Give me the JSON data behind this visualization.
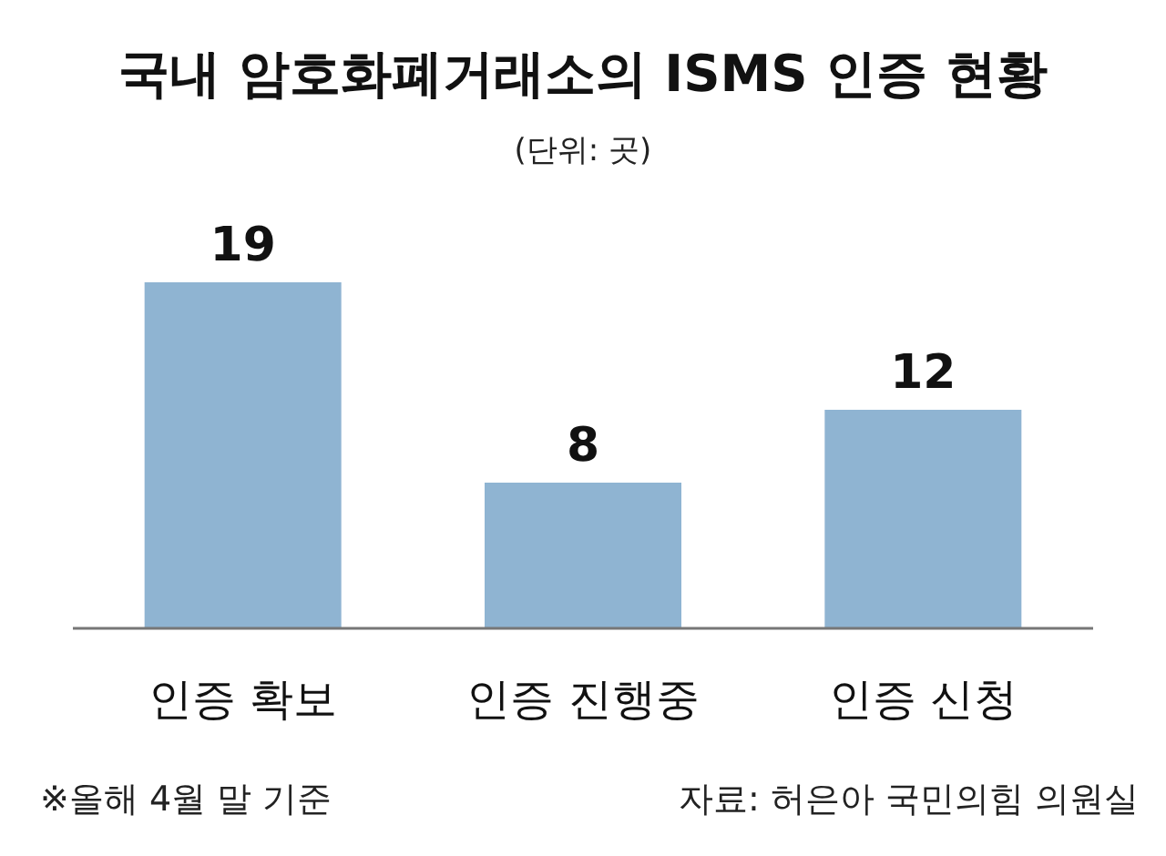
{
  "chart_data": {
    "type": "bar",
    "title": "국내 암호화폐거래소의 ISMS 인증 현황",
    "subtitle": "(단위: 곳)",
    "categories": [
      "인증 확보",
      "인증 진행중",
      "인증 신청"
    ],
    "values": [
      19,
      8,
      12
    ],
    "color": "#8fb4d2",
    "data_labels": true,
    "annotations": [
      "※올해 4월 말 기준",
      "자료: 허은아 국민의힘 의원실"
    ]
  }
}
